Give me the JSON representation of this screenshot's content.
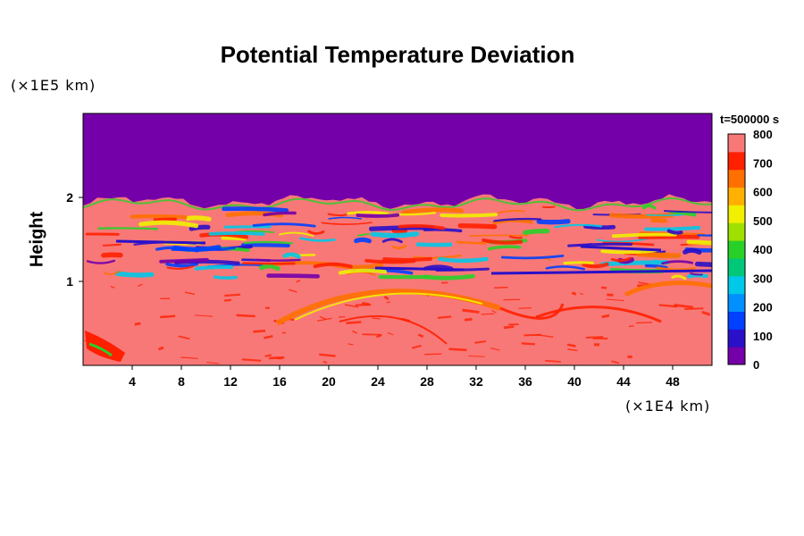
{
  "chart_data": {
    "type": "heatmap",
    "title": "Potential Temperature Deviation",
    "ylabel": "Height",
    "xlabel": "",
    "y_unit": "(×1E5 km)",
    "x_unit": "(×1E4 km)",
    "time_label": "t=500000 s",
    "x_ticks": [
      4,
      8,
      12,
      16,
      20,
      24,
      28,
      32,
      36,
      40,
      44,
      48
    ],
    "y_ticks": [
      1,
      2
    ],
    "xlim": [
      0,
      51.2
    ],
    "ylim": [
      0,
      3.0
    ],
    "colorbar": {
      "min": 0,
      "max": 800,
      "ticks": [
        0,
        100,
        200,
        300,
        400,
        500,
        600,
        700,
        800
      ],
      "colors": [
        "#7300a8",
        "#2a10c8",
        "#0040ff",
        "#0090ff",
        "#00c8e8",
        "#00c878",
        "#28d028",
        "#a0e000",
        "#f0f000",
        "#ffb000",
        "#ff7000",
        "#ff2000",
        "#f87878"
      ]
    },
    "field_summary": {
      "upper_layer_value": 0,
      "background_value": 800,
      "upper_layer_base_height": 1.95,
      "turbulent_band_top": 1.95,
      "turbulent_band_bottom": 1.05
    }
  }
}
